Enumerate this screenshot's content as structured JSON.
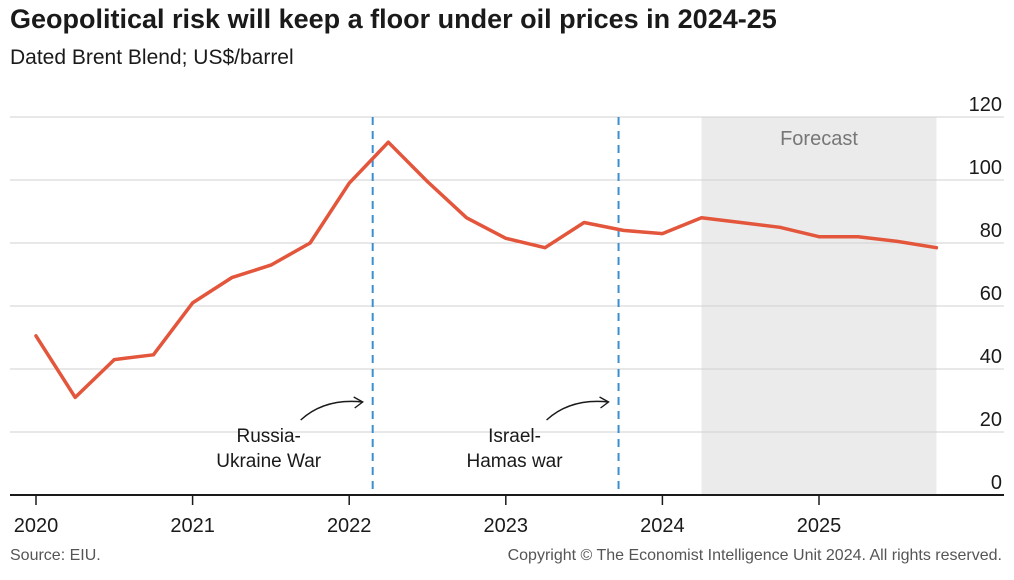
{
  "header": {
    "title": "Geopolitical risk will keep a floor under oil prices in 2024-25",
    "subtitle": "Dated Brent Blend; US$/barrel"
  },
  "footer": {
    "source": "Source: EIU.",
    "copyright": "Copyright © The Economist Intelligence Unit 2024. All rights reserved."
  },
  "colors": {
    "line": "#e3563c",
    "event_line": "#3b8fd0",
    "forecast_band": "#ebebeb",
    "grid": "#d0d0d0",
    "axis": "#1a1a1a"
  },
  "chart_data": {
    "type": "line",
    "title": "Geopolitical risk will keep a floor under oil prices in 2024-25",
    "subtitle": "Dated Brent Blend; US$/barrel",
    "xlabel": "",
    "ylabel": "",
    "ylim": [
      0,
      120
    ],
    "xlim": [
      2020.0,
      2026.0
    ],
    "yticks": [
      0,
      20,
      40,
      60,
      80,
      100,
      120
    ],
    "xticks": [
      2020,
      2021,
      2022,
      2023,
      2024,
      2025
    ],
    "x_tick_labels": [
      "2020",
      "2021",
      "2022",
      "2023",
      "2024",
      "2025"
    ],
    "grid": true,
    "y_axis_side": "right",
    "series": [
      {
        "name": "Dated Brent Blend",
        "x": [
          2020.0,
          2020.25,
          2020.5,
          2020.75,
          2021.0,
          2021.25,
          2021.5,
          2021.75,
          2022.0,
          2022.25,
          2022.5,
          2022.75,
          2023.0,
          2023.25,
          2023.5,
          2023.75,
          2024.0,
          2024.25,
          2024.5,
          2024.75,
          2025.0,
          2025.25,
          2025.5,
          2025.75
        ],
        "values": [
          50.5,
          31,
          43,
          44.5,
          61,
          69,
          73,
          80,
          99,
          112,
          99.5,
          88,
          81.5,
          78.5,
          86.5,
          84,
          83,
          88,
          86.5,
          85,
          82,
          82,
          80.5,
          78.5
        ]
      }
    ],
    "forecast": {
      "label": "Forecast",
      "start": 2024.25,
      "end": 2025.75
    },
    "events": [
      {
        "x": 2022.15,
        "label_line1": "Russia-",
        "label_line2": "Ukraine War"
      },
      {
        "x": 2023.72,
        "label_line1": "Israel-",
        "label_line2": "Hamas war"
      }
    ]
  }
}
